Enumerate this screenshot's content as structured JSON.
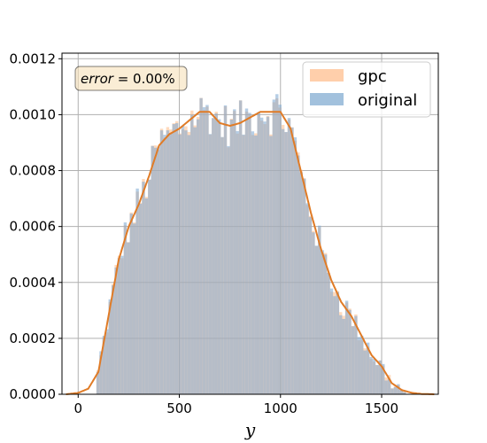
{
  "chart_data": {
    "type": "bar",
    "subtype": "overlaid histogram with KDE curve",
    "xlabel": "y",
    "ylabel": "",
    "xlim": [
      -80,
      1780
    ],
    "ylim": [
      0,
      0.00122
    ],
    "xticks": [
      0,
      500,
      1000,
      1500
    ],
    "xtick_labels": [
      "0",
      "500",
      "1000",
      "1500"
    ],
    "yticks": [
      0,
      0.0002,
      0.0004,
      0.0006,
      0.0008,
      0.001,
      0.0012
    ],
    "ytick_labels": [
      "0.0000",
      "0.0002",
      "0.0004",
      "0.0006",
      "0.0008",
      "0.0010",
      "0.0012"
    ],
    "grid": true,
    "legend_position": "top-right",
    "annotation": {
      "italic": "error",
      "rest": " = 0.00%",
      "position": "top-left"
    },
    "bin_width": 15,
    "series": [
      {
        "name": "gpc",
        "color": "#ffbb88",
        "opacity": 0.55,
        "hist_edges": [
          90,
          1620
        ],
        "density_profile": "matches original"
      },
      {
        "name": "original",
        "color": "#7aa6cf",
        "opacity": 0.55,
        "hist_edges": [
          90,
          1620
        ],
        "density_profile": "matches gpc"
      }
    ],
    "kde_curve": {
      "color": "#e07b26",
      "x": [
        -60,
        0,
        50,
        100,
        150,
        200,
        250,
        300,
        350,
        400,
        450,
        500,
        550,
        600,
        650,
        700,
        750,
        800,
        850,
        900,
        950,
        1000,
        1050,
        1100,
        1150,
        1200,
        1250,
        1300,
        1350,
        1400,
        1450,
        1500,
        1550,
        1600,
        1650,
        1700,
        1760
      ],
      "y": [
        0.0,
        5e-06,
        2e-05,
        8e-05,
        0.00028,
        0.00048,
        0.0006,
        0.00068,
        0.00078,
        0.00089,
        0.00093,
        0.00095,
        0.00098,
        0.00101,
        0.00101,
        0.00097,
        0.00096,
        0.00097,
        0.00099,
        0.00101,
        0.00101,
        0.00101,
        0.00095,
        0.0008,
        0.00065,
        0.00052,
        0.00041,
        0.00033,
        0.00028,
        0.00021,
        0.00014,
        0.0001,
        4e-05,
        1.5e-05,
        5e-06,
        1e-06,
        0.0
      ]
    }
  }
}
